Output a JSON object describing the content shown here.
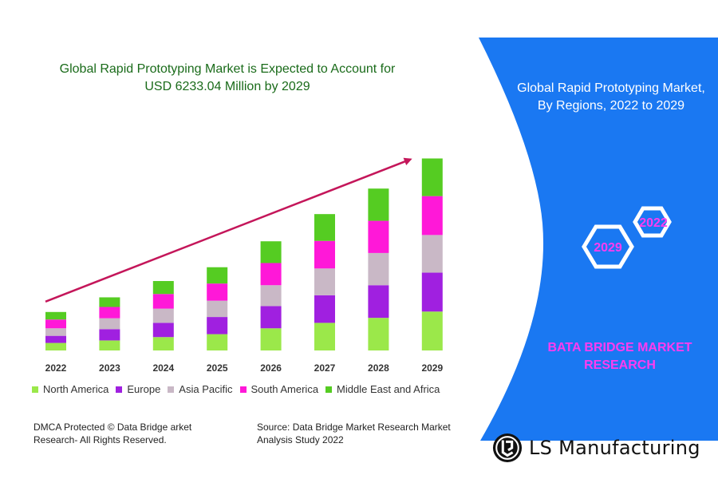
{
  "chart_data": {
    "type": "bar",
    "stacked": true,
    "title": "Global Rapid Prototyping Market is Expected to Account for USD 6233.04 Million by 2029",
    "title_lines": [
      "Global Rapid Prototyping Market is Expected to Account for",
      "USD 6233.04 Million by 2029"
    ],
    "categories": [
      "2022",
      "2023",
      "2024",
      "2025",
      "2026",
      "2027",
      "2028",
      "2029"
    ],
    "series": [
      {
        "name": "North America",
        "color": "#9be84a",
        "values": [
          0.9,
          1.2,
          1.6,
          1.95,
          2.65,
          3.3,
          3.9,
          4.65
        ]
      },
      {
        "name": "Europe",
        "color": "#a020e0",
        "values": [
          0.85,
          1.35,
          1.7,
          2.05,
          2.65,
          3.3,
          3.9,
          4.65
        ]
      },
      {
        "name": "Asia Pacific",
        "color": "#c9b8c6",
        "values": [
          0.9,
          1.3,
          1.7,
          1.95,
          2.5,
          3.2,
          3.85,
          4.5
        ]
      },
      {
        "name": "South America",
        "color": "#ff18d8",
        "values": [
          1.05,
          1.35,
          1.75,
          2.05,
          2.65,
          3.3,
          3.85,
          4.65
        ]
      },
      {
        "name": "Middle East and Africa",
        "color": "#55cc22",
        "values": [
          0.9,
          1.15,
          1.55,
          1.95,
          2.6,
          3.2,
          3.85,
          4.5
        ]
      }
    ],
    "ylim": [
      0,
      25
    ],
    "xlabel": "",
    "ylabel": "",
    "grid": false,
    "legend": "bottom",
    "trend_arrow": {
      "from": "2022",
      "to": "2029",
      "color": "#c4165a"
    }
  },
  "footer": {
    "dmca_line1": "DMCA Protected © Data Bridge arket",
    "dmca_line2": "Research- All Rights Reserved.",
    "source_line1": "Source: Data Bridge Market Research Market",
    "source_line2": "Analysis Study 2022"
  },
  "side_panel": {
    "color": "#1a78f2",
    "title_line1": "Global Rapid Prototyping Market,",
    "title_line2": "By Regions, 2022 to 2029",
    "hex_start_year": "2022",
    "hex_end_year": "2029",
    "brand_line1": "BATA BRIDGE MARKET",
    "brand_line2": "RESEARCH"
  },
  "logo": {
    "text": "LS Manufacturing"
  }
}
